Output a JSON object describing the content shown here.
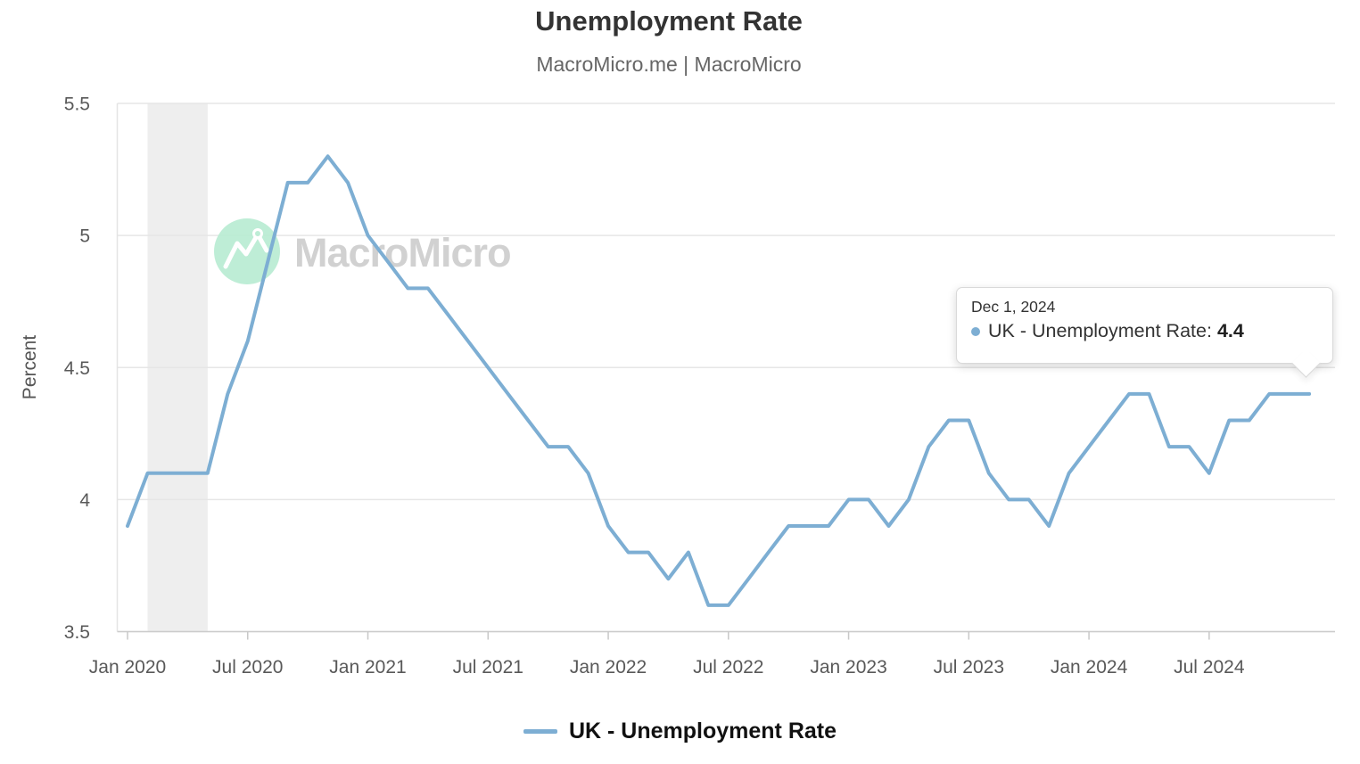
{
  "page": {
    "title": "Unemployment Rate",
    "subtitle": "MacroMicro.me | MacroMicro"
  },
  "watermark": {
    "text": "MacroMicro"
  },
  "tooltip": {
    "date": "Dec 1, 2024",
    "series_label": "UK - Unemployment Rate:",
    "value": "4.4"
  },
  "legend": {
    "label": "UK - Unemployment Rate"
  },
  "chart_data": {
    "type": "line",
    "title": "Unemployment Rate",
    "subtitle": "MacroMicro.me | MacroMicro",
    "xlabel": "",
    "ylabel": "Percent",
    "ylim": [
      3.5,
      5.5
    ],
    "grid": true,
    "legend_position": "bottom",
    "line_color": "#7daed3",
    "y_tick_labels": [
      "5.5",
      "5",
      "4.5",
      "4",
      "3.5"
    ],
    "x_tick_labels": [
      {
        "index": 0,
        "label": "Jan 2020"
      },
      {
        "index": 6,
        "label": "Jul 2020"
      },
      {
        "index": 12,
        "label": "Jan 2021"
      },
      {
        "index": 18,
        "label": "Jul 2021"
      },
      {
        "index": 24,
        "label": "Jan 2022"
      },
      {
        "index": 30,
        "label": "Jul 2022"
      },
      {
        "index": 36,
        "label": "Jan 2023"
      },
      {
        "index": 42,
        "label": "Jul 2023"
      },
      {
        "index": 48,
        "label": "Jan 2024"
      },
      {
        "index": 54,
        "label": "Jul 2024"
      }
    ],
    "shaded_band": {
      "from": "Feb 2020",
      "to": "May 2020",
      "from_index": 1,
      "to_index": 4,
      "color": "#eeeeee"
    },
    "x": [
      "Jan 2020",
      "Feb 2020",
      "Mar 2020",
      "Apr 2020",
      "May 2020",
      "Jun 2020",
      "Jul 2020",
      "Aug 2020",
      "Sep 2020",
      "Oct 2020",
      "Nov 2020",
      "Dec 2020",
      "Jan 2021",
      "Feb 2021",
      "Mar 2021",
      "Apr 2021",
      "May 2021",
      "Jun 2021",
      "Jul 2021",
      "Aug 2021",
      "Sep 2021",
      "Oct 2021",
      "Nov 2021",
      "Dec 2021",
      "Jan 2022",
      "Feb 2022",
      "Mar 2022",
      "Apr 2022",
      "May 2022",
      "Jun 2022",
      "Jul 2022",
      "Aug 2022",
      "Sep 2022",
      "Oct 2022",
      "Nov 2022",
      "Dec 2022",
      "Jan 2023",
      "Feb 2023",
      "Mar 2023",
      "Apr 2023",
      "May 2023",
      "Jun 2023",
      "Jul 2023",
      "Aug 2023",
      "Sep 2023",
      "Oct 2023",
      "Nov 2023",
      "Dec 2023",
      "Jan 2024",
      "Feb 2024",
      "Mar 2024",
      "Apr 2024",
      "May 2024",
      "Jun 2024",
      "Jul 2024",
      "Aug 2024",
      "Sep 2024",
      "Oct 2024",
      "Nov 2024",
      "Dec 2024"
    ],
    "series": [
      {
        "name": "UK - Unemployment Rate",
        "color": "#7daed3",
        "values": [
          3.9,
          4.1,
          4.1,
          4.1,
          4.1,
          4.4,
          4.6,
          4.9,
          5.2,
          5.2,
          5.3,
          5.2,
          5.0,
          4.9,
          4.8,
          4.8,
          4.7,
          4.6,
          4.5,
          4.4,
          4.3,
          4.2,
          4.2,
          4.1,
          3.9,
          3.8,
          3.8,
          3.7,
          3.8,
          3.6,
          3.6,
          3.7,
          3.8,
          3.9,
          3.9,
          3.9,
          4.0,
          4.0,
          3.9,
          4.0,
          4.2,
          4.3,
          4.3,
          4.1,
          4.0,
          4.0,
          3.9,
          4.1,
          4.2,
          4.3,
          4.4,
          4.4,
          4.2,
          4.2,
          4.1,
          4.3,
          4.3,
          4.4,
          4.4,
          4.4
        ]
      }
    ],
    "highlight_point": {
      "x": "Dec 2024",
      "value": 4.4
    }
  }
}
